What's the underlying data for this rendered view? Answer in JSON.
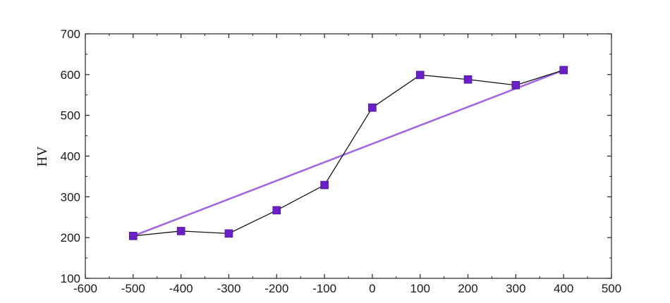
{
  "chart_data": {
    "type": "line",
    "title": "",
    "xlabel": "",
    "ylabel": "HV",
    "xlim": [
      -600,
      500
    ],
    "ylim": [
      100,
      700
    ],
    "x_ticks": [
      -600,
      -500,
      -400,
      -300,
      -200,
      -100,
      0,
      100,
      200,
      300,
      400,
      500
    ],
    "y_ticks": [
      100,
      200,
      300,
      400,
      500,
      600,
      700
    ],
    "grid": false,
    "legend": "none",
    "series": [
      {
        "kind": "line-with-markers",
        "marker": "square",
        "line_color": "#111111",
        "marker_color": "#6a1fc7",
        "x": [
          -500,
          -400,
          -300,
          -200,
          -100,
          0,
          100,
          200,
          300,
          400
        ],
        "y": [
          204,
          216,
          210,
          267,
          329,
          519,
          599,
          588,
          574,
          611
        ]
      },
      {
        "kind": "trend-line",
        "line_color": "#a368e0",
        "x": [
          -500,
          400
        ],
        "y": [
          204,
          611
        ]
      }
    ]
  }
}
